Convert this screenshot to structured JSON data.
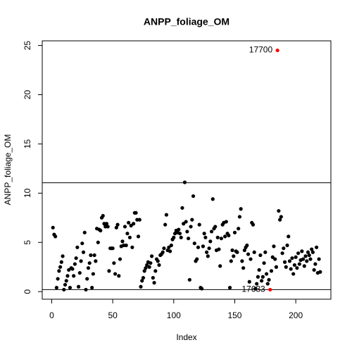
{
  "chart_data": {
    "type": "scatter",
    "title": "ANPP_foliage_OM",
    "xlabel": "Index",
    "ylabel": "ANPP_foliage_OM",
    "x": [
      1,
      2,
      3,
      4,
      5,
      6,
      7,
      8,
      9,
      10,
      11,
      12,
      13,
      14,
      15,
      16,
      17,
      18,
      19,
      20,
      21,
      22,
      23,
      24,
      25,
      26,
      27,
      28,
      29,
      30,
      31,
      32,
      33,
      34,
      35,
      36,
      37,
      38,
      39,
      40,
      41,
      42,
      43,
      44,
      45,
      46,
      47,
      48,
      49,
      50,
      51,
      52,
      53,
      54,
      55,
      56,
      57,
      58,
      59,
      60,
      61,
      62,
      63,
      64,
      65,
      66,
      67,
      68,
      69,
      70,
      71,
      72,
      73,
      74,
      75,
      76,
      77,
      78,
      79,
      80,
      81,
      82,
      83,
      84,
      85,
      86,
      87,
      88,
      89,
      90,
      91,
      92,
      93,
      94,
      95,
      96,
      97,
      98,
      99,
      100,
      101,
      102,
      103,
      104,
      105,
      106,
      107,
      108,
      109,
      110,
      111,
      112,
      113,
      114,
      115,
      116,
      117,
      118,
      119,
      120,
      121,
      122,
      123,
      124,
      125,
      126,
      127,
      128,
      129,
      130,
      131,
      132,
      133,
      134,
      135,
      136,
      137,
      138,
      139,
      140,
      141,
      142,
      143,
      144,
      145,
      146,
      147,
      148,
      149,
      150,
      151,
      152,
      153,
      154,
      155,
      156,
      157,
      158,
      159,
      160,
      161,
      162,
      163,
      164,
      165,
      166,
      167,
      168,
      169,
      170,
      171,
      172,
      173,
      174,
      175,
      176,
      177,
      178,
      179,
      180,
      181,
      182,
      183,
      184,
      185,
      186,
      187,
      188,
      189,
      190,
      191,
      192,
      193,
      194,
      195,
      196,
      197,
      198,
      199,
      200,
      201,
      202,
      203,
      204,
      205,
      206,
      207,
      208,
      209,
      210,
      211,
      212,
      213,
      214,
      215,
      216,
      217,
      218,
      219,
      220
    ],
    "values": [
      6.5,
      5.8,
      5.6,
      0.4,
      1.3,
      2.1,
      2.5,
      3.0,
      3.6,
      0.2,
      0.7,
      1.1,
      1.6,
      2.2,
      0.4,
      2.4,
      2.3,
      1.6,
      2.8,
      3.4,
      4.5,
      0.5,
      1.9,
      3.1,
      4.9,
      4.0,
      6.0,
      0.2,
      1.3,
      2.4,
      2.9,
      3.7,
      0.4,
      1.8,
      3.7,
      3.1,
      6.4,
      5.0,
      6.3,
      6.2,
      7.5,
      7.7,
      6.9,
      6.6,
      6.9,
      6.6,
      2.1,
      4.4,
      4.4,
      4.4,
      2.9,
      1.8,
      6.5,
      6.8,
      1.6,
      3.3,
      4.6,
      5.1,
      4.7,
      6.6,
      4.7,
      5.9,
      7.0,
      5.5,
      6.7,
      4.5,
      6.9,
      8.0,
      8.0,
      7.3,
      5.6,
      7.3,
      0.5,
      1.1,
      1.4,
      2.1,
      2.4,
      2.7,
      3.0,
      2.5,
      2.9,
      3.6,
      1.4,
      0.9,
      2.1,
      3.3,
      3.1,
      2.7,
      3.7,
      3.8,
      4.0,
      4.4,
      6.8,
      7.8,
      4.2,
      4.5,
      4.1,
      4.7,
      5.3,
      5.5,
      5.9,
      6.2,
      6.0,
      6.3,
      5.9,
      5.5,
      8.5,
      6.9,
      11.1,
      7.1,
      6.1,
      5.4,
      1.2,
      6.6,
      7.3,
      9.7,
      4.9,
      3.1,
      3.3,
      4.5,
      6.8,
      0.4,
      0.3,
      4.6,
      5.9,
      5.5,
      4.0,
      3.6,
      4.4,
      5.1,
      6.1,
      9.4,
      6.4,
      6.6,
      4.2,
      5.5,
      4.3,
      2.6,
      5.4,
      6.8,
      7.0,
      5.6,
      7.1,
      5.9,
      5.7,
      0.4,
      3.1,
      4.2,
      3.6,
      6.0,
      4.1,
      4.0,
      6.4,
      7.6,
      8.4,
      3.1,
      2.4,
      4.2,
      4.5,
      4.7,
      3.8,
      1.0,
      3.3,
      7.0,
      6.8,
      4.0,
      0.3,
      0.8,
      1.5,
      2.2,
      3.7,
      1.1,
      1.5,
      2.9,
      4.0,
      1.8,
      0.8,
      1.2,
      0.2,
      2.1,
      3.5,
      4.6,
      3.3,
      2.5,
      24.5,
      8.2,
      7.3,
      7.6,
      3.9,
      4.4,
      3.0,
      2.5,
      4.7,
      5.6,
      3.1,
      2.3,
      3.4,
      1.8,
      2.7,
      3.5,
      2.4,
      3.9,
      2.8,
      3.2,
      4.1,
      3.3,
      2.6,
      3.6,
      3.1,
      4.0,
      3.7,
      3.3,
      4.3,
      4.0,
      2.2,
      2.8,
      4.5,
      1.9,
      3.3,
      2.0
    ],
    "color": "#000000",
    "highlight_color": "#ff0000",
    "annotations": [
      {
        "text": "17700",
        "point": 184
      },
      {
        "text": "17633",
        "point": 178
      }
    ],
    "hlines": [
      11.05,
      0.2
    ],
    "xlim": [
      -7.76,
      228.76
    ],
    "ylim": [
      -0.77,
      25.47
    ],
    "xticks": [
      0,
      50,
      100,
      150,
      200
    ],
    "yticks": [
      0,
      5,
      10,
      15,
      20,
      25
    ]
  }
}
